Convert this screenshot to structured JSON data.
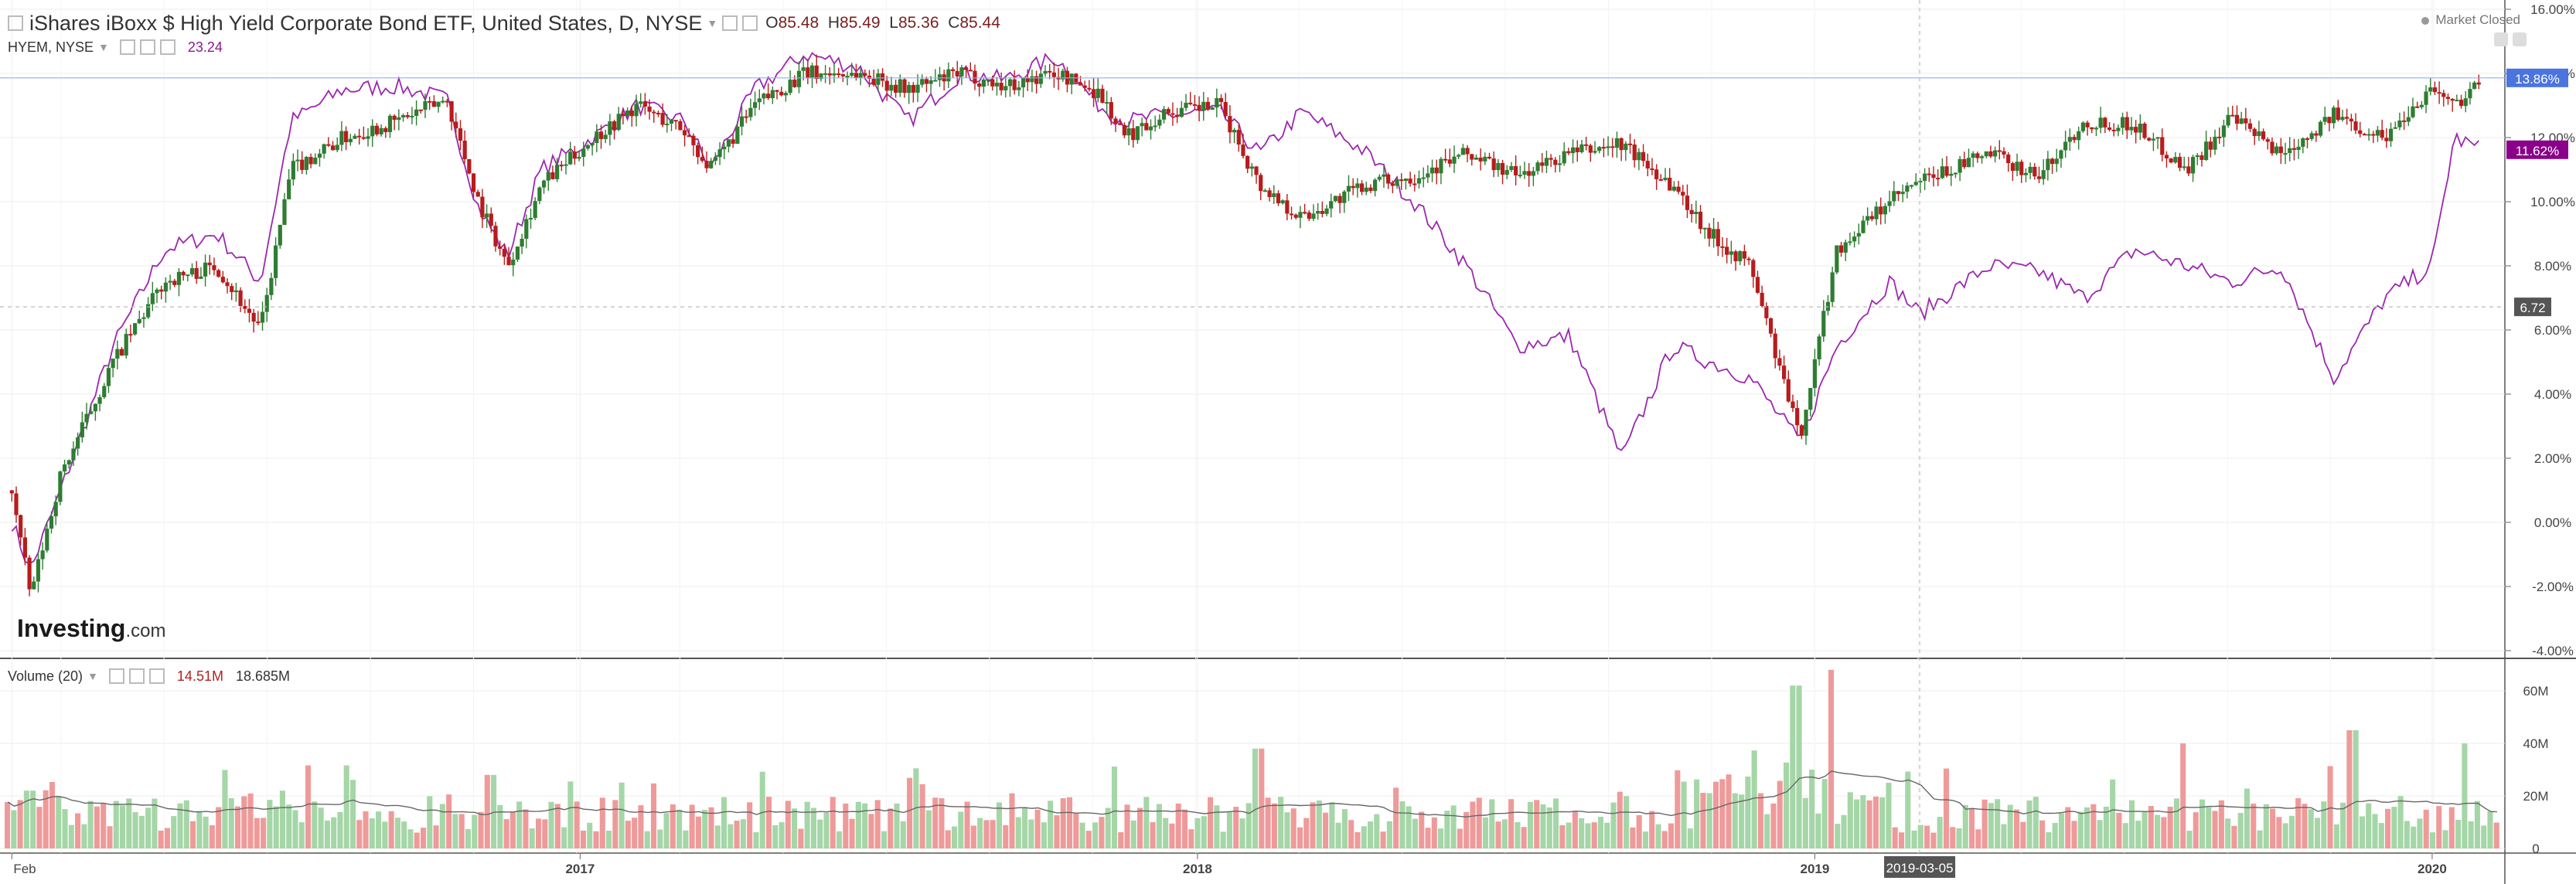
{
  "header": {
    "symbol": "iShares iBoxx $ High Yield Corporate Bond ETF, United States, D, NYSE",
    "open_label": "O",
    "open": "85.48",
    "high_label": "H",
    "high": "85.49",
    "low_label": "L",
    "low": "85.36",
    "close_label": "C",
    "close": "85.44",
    "compare_symbol": "HYEM, NYSE",
    "compare_value": "23.24",
    "market_status": "Market Closed"
  },
  "volume_header": {
    "label": "Volume (20)",
    "value": "14.51M",
    "ma_value": "18.685M"
  },
  "logo": {
    "main": "Investing",
    "suffix": ".com"
  },
  "colors": {
    "up": "#2e7d32",
    "down": "#b71c1c",
    "compare": "#9c27b0",
    "vol_up": "#a5d6a7",
    "vol_down": "#ef9a9a",
    "last_main": "#4a74e0",
    "last_compare": "#8b008b"
  },
  "chart_data": [
    {
      "type": "line",
      "title": "iShares iBoxx $ High Yield Corporate Bond ETF, United States, D, NYSE",
      "x_unit": "date",
      "ylim": [
        -4,
        16
      ],
      "y_ticks": [
        "16.00%",
        "14.00%",
        "12.00%",
        "10.00%",
        "8.00%",
        "6.00%",
        "4.00%",
        "2.00%",
        "0.00%",
        "-2.00%",
        "-4.00%"
      ],
      "x_ticks": [
        "Feb",
        "2017",
        "2018",
        "2019",
        "2020"
      ],
      "crosshair_x_label": "2019-03-05",
      "crosshair_y_label": "6.72",
      "series": [
        {
          "name": "iShares iBoxx $ High Yield Corporate Bond ETF",
          "style": "candlestick",
          "last_label": "13.86%",
          "x": [
            "2016-02-01",
            "2016-02-12",
            "2016-03-01",
            "2016-04-01",
            "2016-05-01",
            "2016-06-01",
            "2016-06-27",
            "2016-07-15",
            "2016-08-15",
            "2016-09-15",
            "2016-10-15",
            "2016-11-03",
            "2016-11-20",
            "2016-12-10",
            "2017-01-10",
            "2017-02-05",
            "2017-03-05",
            "2017-03-20",
            "2017-04-15",
            "2017-05-15",
            "2017-06-15",
            "2017-07-15",
            "2017-08-15",
            "2017-09-10",
            "2017-10-10",
            "2017-11-05",
            "2017-11-20",
            "2017-12-15",
            "2018-01-15",
            "2018-02-08",
            "2018-03-05",
            "2018-04-10",
            "2018-05-10",
            "2018-06-10",
            "2018-07-10",
            "2018-08-10",
            "2018-09-10",
            "2018-10-10",
            "2018-11-01",
            "2018-11-25",
            "2018-12-24",
            "2019-01-15",
            "2019-02-15",
            "2019-03-05",
            "2019-04-15",
            "2019-05-15",
            "2019-06-10",
            "2019-07-10",
            "2019-08-10",
            "2019-09-05",
            "2019-10-05",
            "2019-11-05",
            "2019-12-05",
            "2020-01-02",
            "2020-01-15",
            "2020-02-01"
          ],
          "values": [
            1.0,
            -2.3,
            1.5,
            5.0,
            7.5,
            8.0,
            6.0,
            11.0,
            12.0,
            12.5,
            13.2,
            10.0,
            8.0,
            10.5,
            12.0,
            13.0,
            12.2,
            11.0,
            13.0,
            14.0,
            14.0,
            13.5,
            14.0,
            13.6,
            14.0,
            13.4,
            12.0,
            12.8,
            13.0,
            10.5,
            9.5,
            10.5,
            10.8,
            11.5,
            10.8,
            11.5,
            11.8,
            10.5,
            9.0,
            8.0,
            2.6,
            8.5,
            10.0,
            10.6,
            11.5,
            10.8,
            12.5,
            12.4,
            11.0,
            12.6,
            11.5,
            12.7,
            12.0,
            13.6,
            13.0,
            13.9
          ]
        },
        {
          "name": "HYEM, NYSE",
          "style": "line",
          "last_label": "11.62%",
          "x": [
            "2016-02-01",
            "2016-02-12",
            "2016-03-01",
            "2016-04-01",
            "2016-05-01",
            "2016-06-01",
            "2016-06-27",
            "2016-07-15",
            "2016-08-15",
            "2016-09-15",
            "2016-10-15",
            "2016-11-03",
            "2016-11-20",
            "2016-12-10",
            "2017-01-10",
            "2017-02-05",
            "2017-03-05",
            "2017-03-20",
            "2017-04-15",
            "2017-05-15",
            "2017-06-15",
            "2017-07-15",
            "2017-08-15",
            "2017-09-10",
            "2017-10-10",
            "2017-11-05",
            "2017-11-20",
            "2017-12-15",
            "2018-01-15",
            "2018-02-08",
            "2018-03-05",
            "2018-04-10",
            "2018-05-10",
            "2018-06-10",
            "2018-07-10",
            "2018-08-10",
            "2018-09-10",
            "2018-10-10",
            "2018-11-01",
            "2018-11-25",
            "2018-12-24",
            "2019-01-15",
            "2019-02-15",
            "2019-03-05",
            "2019-04-15",
            "2019-05-15",
            "2019-06-10",
            "2019-07-10",
            "2019-08-10",
            "2019-09-05",
            "2019-10-05",
            "2019-11-05",
            "2019-12-05",
            "2020-01-02",
            "2020-01-15",
            "2020-02-01"
          ],
          "values": [
            0.0,
            -1.5,
            1.0,
            5.5,
            8.5,
            9.0,
            7.5,
            12.5,
            13.5,
            13.6,
            13.2,
            9.8,
            8.3,
            11.0,
            12.0,
            13.0,
            12.5,
            11.0,
            13.5,
            14.6,
            14.2,
            12.5,
            14.0,
            13.8,
            14.5,
            13.0,
            12.5,
            12.7,
            12.8,
            11.5,
            12.8,
            11.6,
            10.0,
            8.0,
            5.5,
            5.8,
            2.0,
            5.5,
            5.0,
            4.5,
            2.5,
            5.5,
            7.5,
            6.5,
            8.0,
            7.8,
            7.0,
            8.5,
            8.0,
            7.5,
            8.0,
            4.5,
            7.0,
            8.0,
            12.0,
            11.6
          ]
        }
      ]
    },
    {
      "type": "bar",
      "title": "Volume (20)",
      "ylim": [
        0,
        70
      ],
      "y_unit": "M",
      "y_ticks": [
        "60M",
        "40M",
        "20M",
        "0"
      ],
      "series": [
        {
          "name": "Volume",
          "bar_count": 390,
          "typical_range_m": [
            5,
            25
          ],
          "spikes_m": {
            "2016-11": 28,
            "2018-02": 38,
            "2018-12-20": 62,
            "2019-01-10": 68,
            "2019-11": 45,
            "2020-01-20": 40
          }
        },
        {
          "name": "MA(20)",
          "style": "line",
          "last": "18.685M"
        }
      ]
    }
  ]
}
